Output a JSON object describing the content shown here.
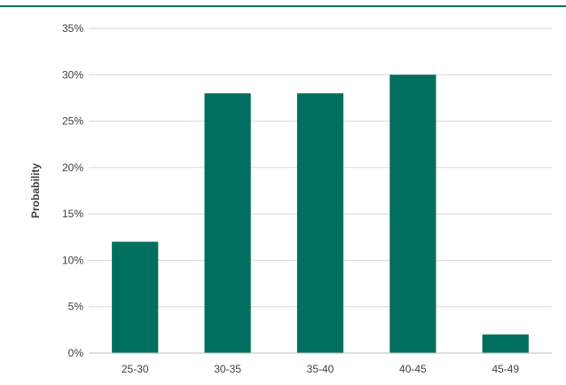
{
  "colors": {
    "bar": "#006f5f",
    "grid": "#d9d9d9",
    "axis": "#bfbfbf",
    "text": "#404040",
    "top_rule": "#0a6e5a"
  },
  "chart_data": {
    "type": "bar",
    "categories": [
      "25-30",
      "30-35",
      "35-40",
      "40-45",
      "45-49"
    ],
    "values": [
      12,
      28,
      28,
      30,
      2
    ],
    "ylabel": "Probability",
    "ylim": [
      0,
      35
    ],
    "yticks": [
      0,
      5,
      10,
      15,
      20,
      25,
      30,
      35
    ],
    "ytick_labels": [
      "0%",
      "5%",
      "10%",
      "15%",
      "20%",
      "25%",
      "30%",
      "35%"
    ],
    "grid": true,
    "legend": "none"
  }
}
